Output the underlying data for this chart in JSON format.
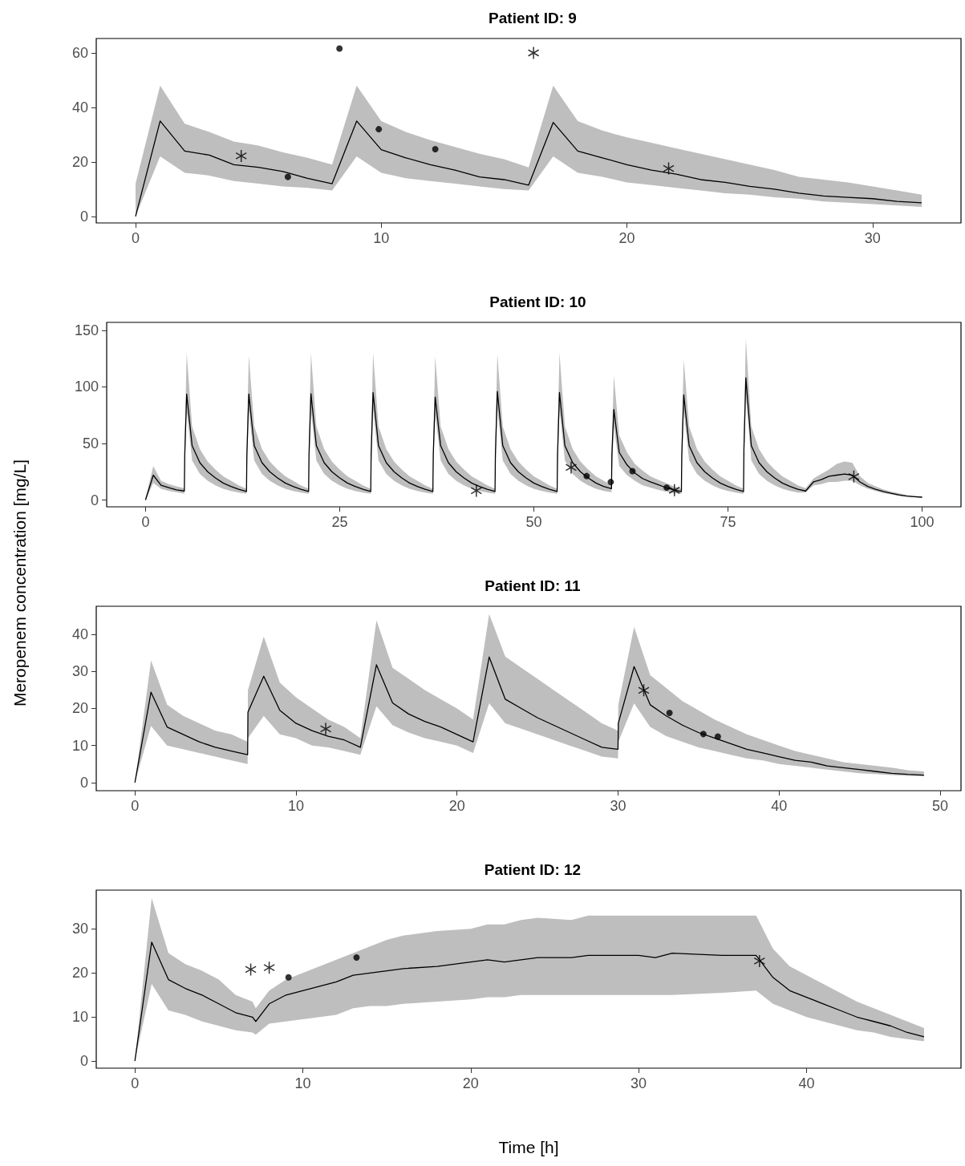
{
  "chart_data": [
    {
      "type": "line",
      "title": "Patient ID: 9",
      "xlim": [
        -1.6,
        33.6
      ],
      "xticks": [
        0,
        10,
        20,
        30
      ],
      "ylim": [
        -2.4,
        65.3
      ],
      "yticks": [
        0,
        20,
        40,
        60
      ],
      "series": [
        {
          "color": "#000000",
          "marker": "none",
          "line_style": "solid",
          "x": [
            0,
            1,
            2,
            3,
            4,
            5,
            6,
            7,
            8,
            9,
            10,
            11,
            12,
            13,
            14,
            15,
            16,
            17,
            18,
            19,
            20,
            21,
            22,
            23,
            24,
            25,
            26,
            27,
            28,
            29,
            30,
            31,
            32
          ],
          "values": [
            0,
            35,
            24,
            22.5,
            19,
            18,
            16.5,
            14,
            12,
            35,
            24.5,
            21.5,
            19,
            17,
            14.5,
            13.5,
            11.5,
            34.5,
            24,
            21.5,
            19,
            17,
            15.5,
            13.5,
            12.5,
            11,
            10,
            8.5,
            7.5,
            7,
            6.5,
            5.5,
            5
          ],
          "lower": [
            0,
            22,
            16,
            15,
            13,
            12,
            11,
            10.5,
            9.5,
            22,
            16,
            14,
            13,
            12,
            11,
            10,
            9.5,
            22,
            16,
            14.5,
            12.5,
            11.5,
            10.5,
            9.5,
            8.5,
            8,
            7,
            6.5,
            5.5,
            5,
            4.5,
            4,
            3.5
          ],
          "upper": [
            12,
            48,
            34,
            31,
            27.5,
            26,
            23.5,
            21.5,
            19,
            48,
            35,
            31,
            28,
            25.5,
            23,
            21,
            18,
            48,
            35,
            31.5,
            29,
            27,
            25,
            23,
            21,
            19,
            17,
            14.5,
            13.5,
            12.5,
            11,
            9.5,
            8
          ]
        },
        {
          "type": "scatter",
          "color": "#000000",
          "marker": "circle",
          "x": [
            8.3,
            6.2,
            9.9,
            12.2
          ],
          "values": [
            61.6,
            14.5,
            32,
            24.7
          ]
        },
        {
          "type": "scatter",
          "color": "#000000",
          "marker": "cross",
          "x": [
            4.3,
            16.2,
            21.7
          ],
          "values": [
            22.2,
            60,
            17.6
          ]
        }
      ]
    },
    {
      "type": "line",
      "title": "Patient ID: 10",
      "xlim": [
        -5,
        105
      ],
      "xticks": [
        0,
        25,
        50,
        75,
        100
      ],
      "ylim": [
        -6,
        157
      ],
      "yticks": [
        0,
        50,
        100,
        150
      ],
      "series": [
        {
          "color": "#000000",
          "marker": "none",
          "line_style": "solid",
          "x": [
            0,
            1,
            2,
            3,
            4,
            5,
            5.05,
            5.3,
            6,
            7,
            8,
            9,
            10,
            11,
            12,
            13,
            13.05,
            13.3,
            14,
            15,
            16,
            17,
            18,
            19,
            20,
            21,
            21.05,
            21.3,
            22,
            23,
            24,
            25,
            26,
            27,
            28,
            29,
            29.05,
            29.3,
            30,
            31,
            32,
            33,
            34,
            35,
            36,
            37,
            37.05,
            37.3,
            38,
            39,
            40,
            41,
            42,
            43,
            44,
            45,
            45.05,
            45.3,
            46,
            47,
            48,
            49,
            50,
            51,
            52,
            53,
            53.05,
            53.3,
            54,
            55,
            56,
            57,
            58,
            59,
            60,
            60.05,
            60.3,
            61,
            62,
            63,
            64,
            65,
            66,
            67,
            68,
            69,
            69.05,
            69.3,
            70,
            71,
            72,
            73,
            74,
            75,
            76,
            77,
            77.05,
            77.3,
            78,
            79,
            80,
            81,
            82,
            83,
            84,
            85,
            86,
            87,
            88,
            89,
            90,
            91,
            92,
            93,
            94,
            95,
            96,
            97,
            98,
            99,
            100
          ],
          "values": [
            0,
            22,
            13,
            11,
            9,
            8,
            40,
            93.7,
            48,
            33,
            25,
            19.5,
            15,
            12,
            9.5,
            7.5,
            40,
            93.7,
            48,
            33,
            25,
            19.5,
            15,
            12,
            9.5,
            7.5,
            40,
            94,
            48,
            33,
            25,
            19.5,
            15,
            12,
            9.5,
            7.5,
            40,
            95,
            48,
            33,
            25,
            19.5,
            15,
            12,
            9.5,
            7.5,
            40,
            91,
            48,
            33,
            25,
            19.5,
            15,
            12,
            9.5,
            7.5,
            40,
            96,
            48,
            33,
            25,
            19.5,
            15,
            12,
            9.5,
            7.5,
            40,
            95,
            48,
            33,
            25,
            19.5,
            15,
            12,
            10,
            40,
            80,
            42,
            31,
            24,
            19,
            16,
            13.5,
            11,
            9,
            7.5,
            40,
            93,
            48,
            33,
            25,
            19.5,
            15,
            12,
            9.5,
            7.5,
            45,
            108,
            48,
            33,
            25,
            19.5,
            15,
            12,
            9.5,
            8,
            16,
            18,
            21,
            22,
            23,
            22,
            16,
            12,
            9.5,
            7.5,
            6,
            4.5,
            3.5,
            3,
            2.5
          ],
          "lower": [
            0,
            15,
            10,
            8,
            7,
            5.5,
            25,
            79,
            35,
            23,
            17,
            13,
            10,
            8,
            6.5,
            5.5,
            25,
            79,
            35,
            23,
            17,
            13,
            10,
            8,
            6.5,
            5.5,
            25,
            79,
            35,
            23,
            17,
            13,
            10,
            8,
            6.5,
            5.5,
            25,
            80,
            35,
            23,
            17,
            13,
            10,
            8,
            6.5,
            5.5,
            25,
            76,
            35,
            23,
            17,
            13,
            10,
            8,
            6.5,
            5.5,
            25,
            81,
            35,
            23,
            17,
            13,
            10,
            8,
            6.5,
            5.5,
            25,
            80,
            35,
            23,
            17,
            13,
            10,
            8,
            7,
            22,
            65,
            30,
            22,
            17,
            13,
            11,
            9,
            7.5,
            6,
            5.5,
            25,
            78,
            35,
            23,
            17,
            13,
            10,
            8,
            6.5,
            5.5,
            28,
            93,
            35,
            23,
            17,
            13,
            10,
            8,
            6.5,
            6.5,
            13,
            14,
            16,
            16,
            17,
            17,
            13,
            10,
            8,
            6,
            5,
            3.5,
            3,
            2.5,
            2
          ],
          "upper": [
            2,
            30,
            17,
            14,
            12,
            10.5,
            55,
            130,
            65,
            45,
            34,
            27,
            21,
            17,
            13,
            10,
            55,
            128,
            65,
            45,
            34,
            27,
            21,
            17,
            13,
            10,
            55,
            130,
            65,
            45,
            34,
            27,
            21,
            17,
            13,
            10,
            55,
            130,
            65,
            45,
            34,
            27,
            21,
            17,
            13,
            10,
            55,
            127,
            65,
            45,
            34,
            27,
            21,
            17,
            13,
            10,
            55,
            129,
            65,
            45,
            34,
            27,
            21,
            17,
            13,
            10,
            55,
            130,
            65,
            45,
            34,
            27,
            21,
            17,
            13,
            52,
            110,
            57,
            42,
            32,
            26,
            21,
            18,
            15,
            12,
            10,
            55,
            124,
            65,
            45,
            34,
            27,
            21,
            17,
            13,
            10,
            60,
            143,
            65,
            45,
            34,
            27,
            21,
            17,
            13,
            10.5,
            19,
            23,
            27,
            32,
            34,
            33,
            21,
            15,
            12,
            9.5,
            7.5,
            6,
            4.5,
            3.5,
            3
          ]
        },
        {
          "type": "scatter",
          "color": "#000000",
          "marker": "circle",
          "x": [
            56.8,
            59.9,
            62.7,
            67.1
          ],
          "values": [
            21.2,
            15.9,
            25.5,
            11
          ]
        },
        {
          "type": "scatter",
          "color": "#000000",
          "marker": "cross",
          "x": [
            42.6,
            54.8,
            68.1,
            91.2
          ],
          "values": [
            8.2,
            28.8,
            8.7,
            20.7
          ]
        }
      ]
    },
    {
      "type": "line",
      "title": "Patient ID: 11",
      "ylabel": "Meropenem concentration [mg/L]",
      "xlim": [
        -2.4,
        51.3
      ],
      "xticks": [
        0,
        10,
        20,
        30,
        40,
        50
      ],
      "ylim": [
        -2.2,
        47.6
      ],
      "yticks": [
        0,
        10,
        20,
        30,
        40
      ],
      "series": [
        {
          "color": "#000000",
          "marker": "none",
          "line_style": "solid",
          "x": [
            0,
            1,
            2,
            3,
            4,
            5,
            6,
            7,
            7.02,
            8,
            9,
            10,
            11,
            12,
            13,
            14,
            15,
            16,
            17,
            18,
            19,
            20,
            21,
            22,
            23,
            24,
            25,
            26,
            27,
            28,
            29,
            30,
            30.02,
            31,
            32,
            33,
            34,
            35,
            36,
            37,
            38,
            39,
            40,
            41,
            42,
            43,
            44,
            45,
            46,
            47,
            48,
            49
          ],
          "values": [
            0,
            24.4,
            15,
            13,
            11,
            9.5,
            8.5,
            7.5,
            19,
            28.7,
            19.5,
            16,
            14,
            12.5,
            11.5,
            9.5,
            31.8,
            21.5,
            18.5,
            16.5,
            15,
            13,
            11,
            33.9,
            22.5,
            20,
            17.5,
            15.5,
            13.5,
            11.5,
            9.5,
            9,
            16,
            31.3,
            21,
            18,
            15.5,
            13.5,
            12,
            10.5,
            9,
            8,
            7,
            6,
            5.5,
            4.5,
            4,
            3.5,
            3,
            2.5,
            2.2,
            2
          ],
          "lower": [
            0,
            15.3,
            10,
            9,
            8,
            7,
            6,
            5,
            12,
            18,
            13,
            12,
            10,
            9.5,
            8.5,
            7.5,
            20.6,
            15.5,
            13.5,
            12,
            11,
            10,
            8,
            21.4,
            16,
            14.5,
            13,
            11.5,
            10,
            8.5,
            7,
            6.5,
            11,
            21.4,
            15,
            12.5,
            11,
            9.5,
            8.5,
            7.5,
            6.5,
            6,
            5,
            4.5,
            4,
            3.5,
            3,
            2.5,
            2.3,
            2,
            1.8,
            1.7
          ],
          "upper": [
            0,
            33,
            21,
            18,
            16,
            14,
            13,
            11,
            25,
            39.4,
            27,
            23,
            20,
            17,
            15,
            12,
            43.8,
            31,
            28,
            25,
            22.5,
            20,
            17,
            45.5,
            34,
            31,
            28,
            25,
            22,
            19,
            16,
            14,
            21,
            42,
            29,
            25.5,
            22,
            19.5,
            17,
            15,
            13,
            11.5,
            10,
            8.5,
            7.5,
            6.5,
            5.5,
            5,
            4.5,
            4,
            3.3,
            3
          ]
        },
        {
          "type": "scatter",
          "color": "#000000",
          "marker": "circle",
          "x": [
            33.2,
            35.3,
            36.2
          ],
          "values": [
            18.8,
            13.1,
            12.4
          ]
        },
        {
          "type": "scatter",
          "color": "#000000",
          "marker": "cross",
          "x": [
            11.85,
            31.6
          ],
          "values": [
            14.5,
            24.9
          ]
        }
      ]
    },
    {
      "type": "line",
      "title": "Patient ID: 12",
      "xlabel": "Time [h]",
      "xlim": [
        -2.3,
        49.2
      ],
      "xticks": [
        0,
        10,
        20,
        30,
        40
      ],
      "ylim": [
        -1.6,
        38.8
      ],
      "yticks": [
        0,
        10,
        20,
        30
      ],
      "series": [
        {
          "color": "#000000",
          "marker": "none",
          "line_style": "solid",
          "x": [
            0,
            1,
            2,
            3,
            4,
            5,
            6,
            7,
            7.2,
            8,
            9,
            10,
            11,
            12,
            13,
            14,
            15,
            16,
            18,
            20,
            21,
            22,
            23,
            24,
            26,
            27,
            30,
            31,
            32,
            35,
            37,
            38,
            39,
            40,
            41,
            42,
            43,
            44,
            45,
            46,
            47
          ],
          "values": [
            0,
            27,
            18.5,
            16.5,
            15,
            13,
            11,
            10,
            9,
            13,
            15,
            16,
            17,
            18,
            19.5,
            20,
            20.5,
            21,
            21.5,
            22.5,
            23,
            22.5,
            23,
            23.5,
            23.5,
            24,
            24,
            23.5,
            24.5,
            24,
            24,
            19,
            16,
            14.5,
            13,
            11.5,
            10,
            9,
            8,
            6.5,
            5.5
          ],
          "lower": [
            0,
            17.5,
            11.5,
            10.5,
            9,
            8,
            7,
            6.5,
            6,
            8.5,
            9,
            9.5,
            10,
            10.5,
            12,
            12.5,
            12.5,
            13,
            13.5,
            14,
            14.5,
            14.5,
            15,
            15,
            15,
            15,
            15,
            15,
            15,
            15.5,
            16,
            13,
            11.5,
            10,
            9,
            8,
            7,
            6.5,
            5.5,
            5,
            4.5
          ],
          "upper": [
            0,
            37,
            24.5,
            22,
            20.5,
            18.5,
            15,
            13.5,
            12,
            16,
            18.5,
            20,
            21.5,
            23,
            24.5,
            26,
            27.5,
            28.5,
            29.5,
            30,
            31,
            31,
            32,
            32.5,
            32,
            33,
            33,
            33,
            33,
            33,
            33,
            25.5,
            21.5,
            19.5,
            17.5,
            15.5,
            13.5,
            12,
            10.5,
            9,
            7.5
          ]
        },
        {
          "type": "scatter",
          "color": "#000000",
          "marker": "circle",
          "x": [
            9.15,
            13.2
          ],
          "values": [
            19,
            23.5
          ]
        },
        {
          "type": "scatter",
          "color": "#000000",
          "marker": "cross",
          "x": [
            6.9,
            8,
            37.2
          ],
          "values": [
            20.8,
            21.2,
            22.7
          ]
        }
      ]
    }
  ]
}
